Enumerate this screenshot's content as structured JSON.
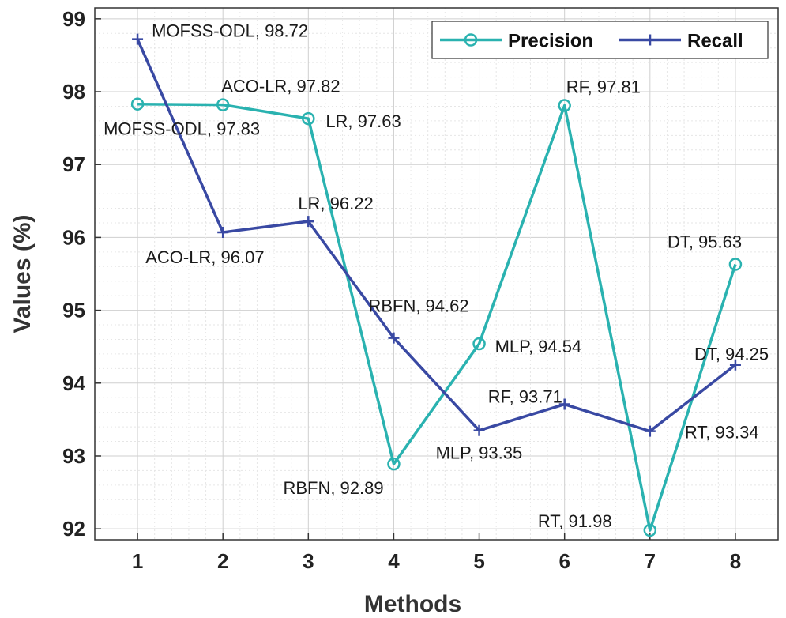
{
  "chart_data": {
    "type": "line",
    "title": "",
    "xlabel": "Methods",
    "ylabel": "Values (%)",
    "categories": [
      "1",
      "2",
      "3",
      "4",
      "5",
      "6",
      "7",
      "8"
    ],
    "x": [
      1,
      2,
      3,
      4,
      5,
      6,
      7,
      8
    ],
    "xlim": [
      0.5,
      8.5
    ],
    "ylim": [
      91.85,
      99.15
    ],
    "yticks": [
      "92",
      "93",
      "94",
      "95",
      "96",
      "97",
      "98",
      "99"
    ],
    "grid": true,
    "legend_position": "top-right",
    "series": [
      {
        "name": "Precision",
        "color": "#2ab2b0",
        "marker": "circle",
        "values": [
          97.83,
          97.82,
          97.63,
          92.89,
          94.54,
          97.81,
          91.98,
          95.63
        ],
        "labels": [
          "MOFSS-ODL, 97.83",
          "ACO-LR, 97.82",
          "LR, 97.63",
          "RBFN, 92.89",
          "MLP, 94.54",
          "RF, 97.81",
          "RT, 91.98",
          "DT, 95.63"
        ]
      },
      {
        "name": "Recall",
        "color": "#3949a3",
        "marker": "plus",
        "values": [
          98.72,
          96.07,
          96.22,
          94.62,
          93.35,
          93.71,
          93.34,
          94.25
        ],
        "labels": [
          "MOFSS-ODL, 98.72",
          "ACO-LR, 96.07",
          "LR, 96.22",
          "RBFN, 94.62",
          "MLP, 93.35",
          "RF, 93.71",
          "RT, 93.34",
          "DT, 94.25"
        ]
      }
    ]
  }
}
